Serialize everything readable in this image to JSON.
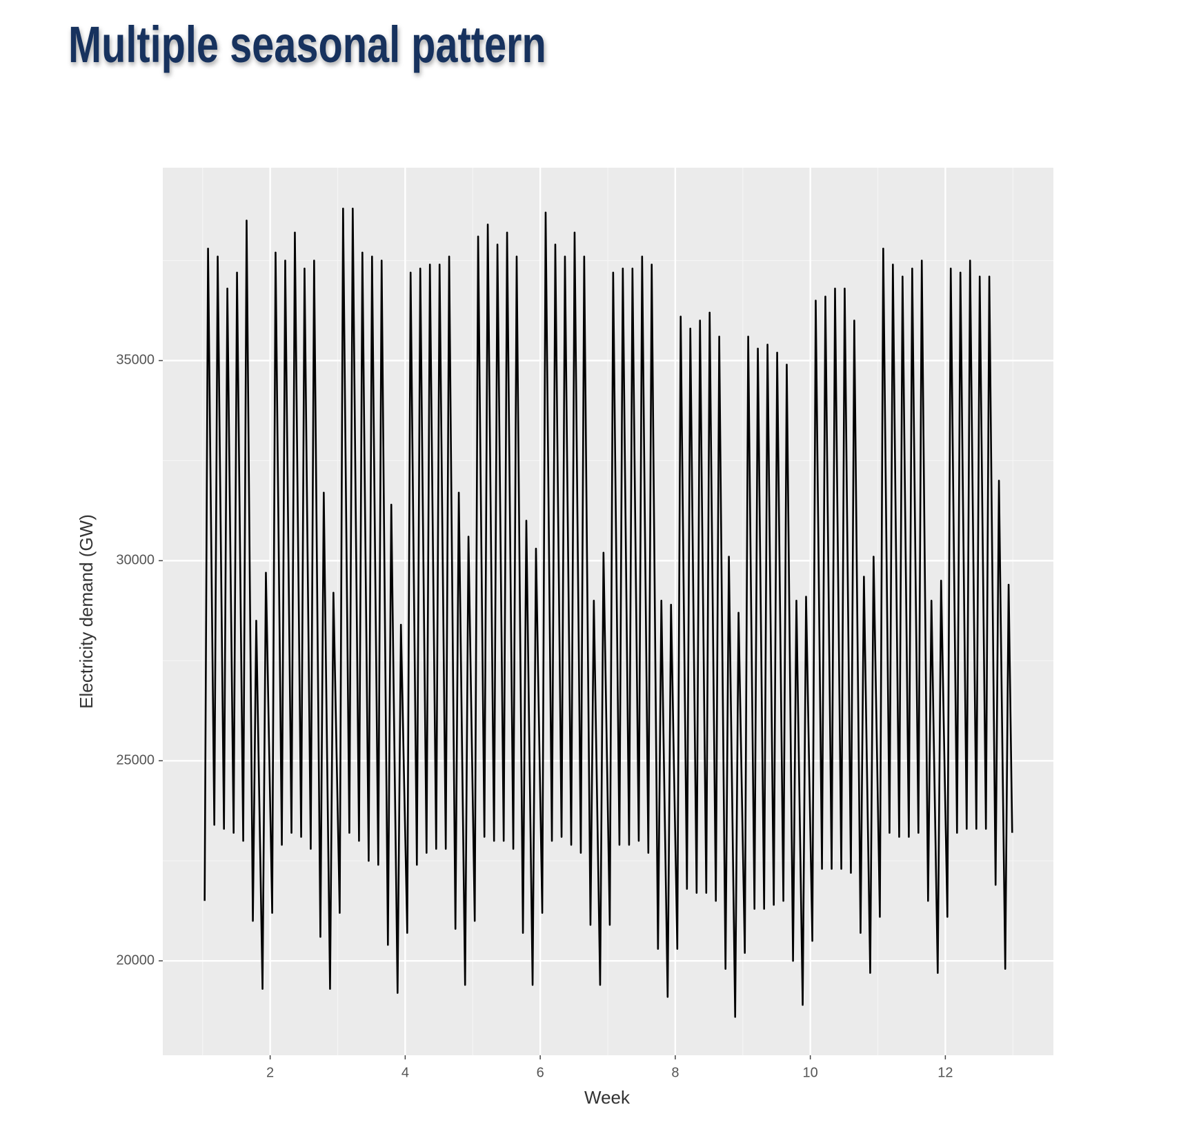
{
  "chart_data": {
    "type": "line",
    "title": "Multiple seasonal pattern",
    "x_label": "Week",
    "y_label": "Electricity demand (GW)",
    "xlim": [
      0.41,
      13.6
    ],
    "ylim": [
      17640,
      39820
    ],
    "xticks": [
      2,
      4,
      6,
      8,
      10,
      12
    ],
    "yticks": [
      20000,
      25000,
      30000,
      35000
    ],
    "x_minor_grid": [
      1,
      3,
      5,
      7,
      9,
      11,
      13
    ],
    "y_minor_grid": [
      22500,
      27500,
      32500,
      37500
    ],
    "grid": true,
    "panel_color": "#ebebeb",
    "x": [
      1.03,
      1.08,
      1.173,
      1.223,
      1.316,
      1.366,
      1.459,
      1.509,
      1.601,
      1.651,
      1.744,
      1.794,
      1.887,
      1.937,
      2.03,
      2.08,
      2.173,
      2.223,
      2.316,
      2.366,
      2.459,
      2.509,
      2.601,
      2.651,
      2.744,
      2.794,
      2.887,
      2.937,
      3.03,
      3.08,
      3.173,
      3.223,
      3.316,
      3.366,
      3.459,
      3.509,
      3.601,
      3.651,
      3.744,
      3.794,
      3.887,
      3.937,
      4.03,
      4.08,
      4.173,
      4.223,
      4.316,
      4.366,
      4.459,
      4.509,
      4.601,
      4.651,
      4.744,
      4.794,
      4.887,
      4.937,
      5.03,
      5.08,
      5.173,
      5.223,
      5.316,
      5.366,
      5.459,
      5.509,
      5.601,
      5.651,
      5.744,
      5.794,
      5.887,
      5.937,
      6.03,
      6.08,
      6.173,
      6.223,
      6.316,
      6.366,
      6.459,
      6.509,
      6.601,
      6.651,
      6.744,
      6.794,
      6.887,
      6.937,
      7.03,
      7.08,
      7.173,
      7.223,
      7.316,
      7.366,
      7.459,
      7.509,
      7.601,
      7.651,
      7.744,
      7.794,
      7.887,
      7.937,
      8.03,
      8.08,
      8.173,
      8.223,
      8.316,
      8.366,
      8.459,
      8.509,
      8.601,
      8.651,
      8.744,
      8.794,
      8.887,
      8.937,
      9.03,
      9.08,
      9.173,
      9.223,
      9.316,
      9.366,
      9.459,
      9.509,
      9.601,
      9.651,
      9.744,
      9.794,
      9.887,
      9.937,
      10.03,
      10.08,
      10.173,
      10.223,
      10.316,
      10.366,
      10.459,
      10.509,
      10.601,
      10.651,
      10.744,
      10.794,
      10.887,
      10.937,
      11.03,
      11.08,
      11.173,
      11.223,
      11.316,
      11.366,
      11.459,
      11.509,
      11.601,
      11.651,
      11.744,
      11.794,
      11.887,
      11.937,
      12.03,
      12.08,
      12.173,
      12.223,
      12.316,
      12.366,
      12.459,
      12.509,
      12.601,
      12.651,
      12.744,
      12.794,
      12.887,
      12.937,
      12.99
    ],
    "series": [
      {
        "name": "Electricity demand",
        "color": "#000000",
        "values": [
          21500,
          37800,
          23400,
          37600,
          23300,
          36800,
          23200,
          37200,
          23000,
          38500,
          21000,
          28500,
          19300,
          29700,
          21200,
          37700,
          22900,
          37500,
          23200,
          38200,
          23100,
          37300,
          22800,
          37500,
          20600,
          31700,
          19300,
          29200,
          21200,
          38800,
          23200,
          38800,
          23000,
          37700,
          22500,
          37600,
          22400,
          37500,
          20400,
          31400,
          19200,
          28400,
          20700,
          37200,
          22400,
          37300,
          22700,
          37400,
          22800,
          37400,
          22800,
          37600,
          20800,
          31700,
          19400,
          30600,
          21000,
          38100,
          23100,
          38400,
          23000,
          37900,
          23000,
          38200,
          22800,
          37600,
          20700,
          31000,
          19400,
          30300,
          21200,
          38700,
          23000,
          37900,
          23100,
          37600,
          22900,
          38200,
          22700,
          37600,
          20900,
          29000,
          19400,
          30200,
          20900,
          37200,
          22900,
          37300,
          22900,
          37300,
          23000,
          37600,
          22700,
          37400,
          20300,
          29000,
          19100,
          28900,
          20300,
          36100,
          21800,
          35800,
          21700,
          36000,
          21700,
          36200,
          21500,
          35600,
          19800,
          30100,
          18600,
          28700,
          20200,
          35600,
          21300,
          35300,
          21300,
          35400,
          21400,
          35200,
          21500,
          34900,
          20000,
          29000,
          18900,
          29100,
          20500,
          36500,
          22300,
          36600,
          22300,
          36800,
          22300,
          36800,
          22200,
          36000,
          20700,
          29600,
          19700,
          30100,
          21100,
          37800,
          23200,
          37400,
          23100,
          37100,
          23100,
          37300,
          23200,
          37500,
          21500,
          29000,
          19700,
          29500,
          21100,
          37300,
          23200,
          37200,
          23300,
          37500,
          23300,
          37100,
          23300,
          37100,
          21900,
          32000,
          19800,
          29400,
          23200
        ]
      }
    ]
  }
}
